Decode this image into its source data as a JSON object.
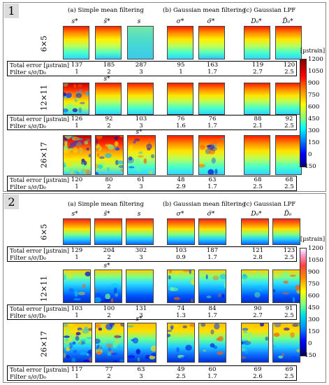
{
  "columns": {
    "a": "(a) Simple mean filtering",
    "b": "(b) Gaussian mean filtering",
    "c": "(c) Gaussian LPF"
  },
  "labels": {
    "total_error": "Total error [µstrain]",
    "filter": "Filter s/σ/D₀"
  },
  "colorbar": {
    "unit": "[µstrain]",
    "ticks": [
      "1200",
      "1050",
      "900",
      "750",
      "600",
      "450",
      "300",
      "150",
      "0",
      "−150"
    ]
  },
  "panels": [
    {
      "number": "1",
      "column_marks": [
        "s*",
        "s̃*",
        "s",
        "σ*",
        "σ̃*",
        "D₀*",
        "D̃₀*"
      ],
      "rows": [
        {
          "label": "6×5",
          "above_mark": "",
          "errors": [
            "137",
            "185",
            "287",
            "95",
            "163",
            "119",
            "120"
          ],
          "filters": [
            "1",
            "2",
            "3",
            "1",
            "1.7",
            "2.7",
            "2.5"
          ]
        },
        {
          "label": "12×11",
          "above_mark": "s̃*",
          "errors": [
            "126",
            "92",
            "103",
            "76",
            "76",
            "88",
            "92"
          ],
          "filters": [
            "1",
            "2",
            "3",
            "1.6",
            "1.7",
            "2.1",
            "2.5"
          ]
        },
        {
          "label": "26×17",
          "above_mark": "s*",
          "errors": [
            "120",
            "80",
            "61",
            "48",
            "63",
            "68",
            "68"
          ],
          "filters": [
            "1",
            "2",
            "3",
            "2.9",
            "1.7",
            "2.5",
            "2.5"
          ]
        }
      ]
    },
    {
      "number": "2",
      "column_marks": [
        "s*",
        "s̃*",
        "s",
        "σ*",
        "σ̃*",
        "D₀*",
        "D̃₀"
      ],
      "rows": [
        {
          "label": "6×5",
          "above_mark": "",
          "errors": [
            "129",
            "204",
            "302",
            "103",
            "187",
            "121",
            "123"
          ],
          "filters": [
            "1",
            "2",
            "3",
            "0.9",
            "1.7",
            "2.8",
            "2.5"
          ]
        },
        {
          "label": "12×11",
          "above_mark": "s*",
          "errors": [
            "103",
            "100",
            "131",
            "74",
            "84",
            "90",
            "91"
          ],
          "filters": [
            "1",
            "2",
            "3",
            "1.3",
            "1.7",
            "2.7",
            "2.5"
          ]
        },
        {
          "label": "26×17",
          "above_mark": "s*",
          "errors": [
            "117",
            "77",
            "63",
            "49",
            "60",
            "69",
            "69"
          ],
          "filters": [
            "1",
            "2",
            "3",
            "2.5",
            "1.7",
            "2.6",
            "2.5"
          ]
        }
      ]
    }
  ]
}
